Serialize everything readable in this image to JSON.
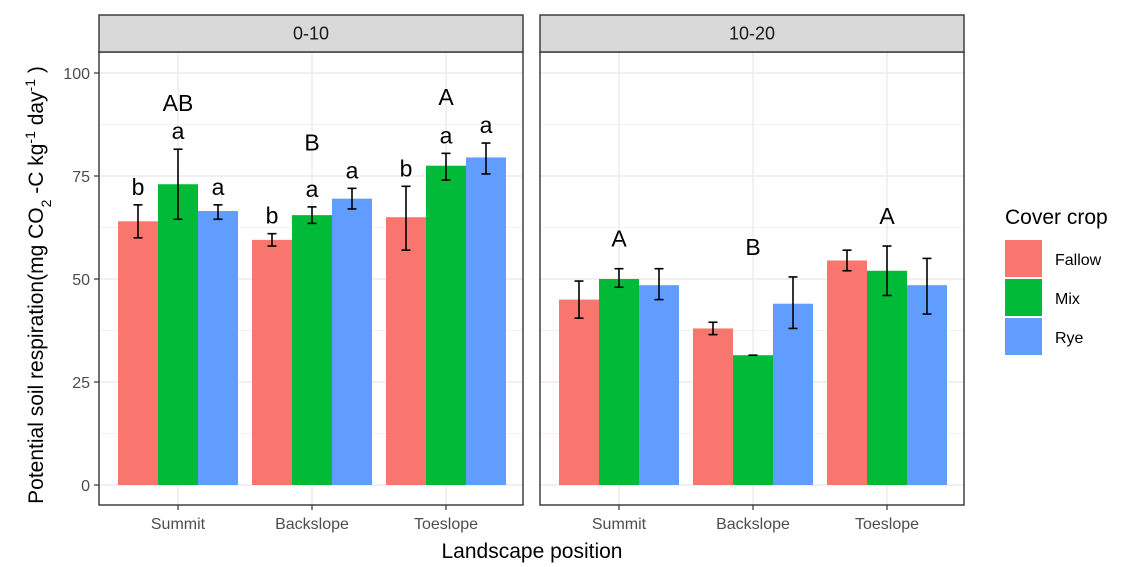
{
  "chart_data": {
    "type": "bar",
    "xlabel": "Landscape position",
    "ylabel": {
      "prefix": "Potential soil respiration(mg CO",
      "sub": "2",
      "mid1": " -C kg",
      "sup1": "-1",
      "mid2": " day",
      "sup2": "-1",
      "suffix": " )"
    },
    "ylim": [
      -4,
      112
    ],
    "yticks": [
      0,
      25,
      50,
      75,
      100
    ],
    "ytick_labels": [
      "0",
      "25",
      "50",
      "75",
      "100"
    ],
    "grid": true,
    "categories": [
      "Summit",
      "Backslope",
      "Toeslope"
    ],
    "legend": {
      "title": "Cover crop",
      "position": "right",
      "items": [
        {
          "name": "Fallow",
          "color": "#F8766D"
        },
        {
          "name": "Mix",
          "color": "#00BA38"
        },
        {
          "name": "Rye",
          "color": "#619CFF"
        }
      ]
    },
    "panels": [
      {
        "strip": "0-10",
        "series": [
          {
            "name": "Fallow",
            "values": [
              64,
              59.5,
              65
            ],
            "err_low": [
              60,
              58,
              57
            ],
            "err_high": [
              68,
              61,
              72.5
            ]
          },
          {
            "name": "Mix",
            "values": [
              73,
              65.5,
              77.5
            ],
            "err_low": [
              64.5,
              63.5,
              74
            ],
            "err_high": [
              81.5,
              67.5,
              80.5
            ]
          },
          {
            "name": "Rye",
            "values": [
              66.5,
              69.5,
              79.5
            ],
            "err_low": [
              64.5,
              67,
              75.5
            ],
            "err_high": [
              68,
              72,
              83
            ]
          }
        ],
        "series_letters": [
          [
            "b",
            "a",
            "a"
          ],
          [
            "b",
            "a",
            "a"
          ],
          [
            "b",
            "a",
            "a"
          ]
        ],
        "position_letters": [
          "AB",
          "B",
          "A"
        ]
      },
      {
        "strip": "10-20",
        "series": [
          {
            "name": "Fallow",
            "values": [
              45,
              38,
              54.5
            ],
            "err_low": [
              40.5,
              36.5,
              52
            ],
            "err_high": [
              49.5,
              39.5,
              57
            ]
          },
          {
            "name": "Mix",
            "values": [
              50,
              31.5,
              52
            ],
            "err_low": [
              48,
              31.5,
              46
            ],
            "err_high": [
              52.5,
              31.5,
              58
            ]
          },
          {
            "name": "Rye",
            "values": [
              48.5,
              44,
              48.5
            ],
            "err_low": [
              45,
              38,
              41.5
            ],
            "err_high": [
              52.5,
              50.5,
              55
            ]
          }
        ],
        "series_letters": [],
        "position_letters": [
          "A",
          "B",
          "A"
        ]
      }
    ]
  }
}
